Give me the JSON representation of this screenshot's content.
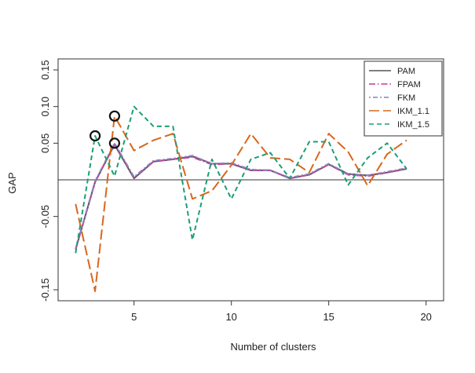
{
  "chart_data": {
    "type": "line",
    "title": "",
    "xlabel": "Number of clusters",
    "ylabel": "GAP",
    "xlim": [
      1.1,
      20.9
    ],
    "ylim": [
      -0.165,
      0.165
    ],
    "xticks": [
      5,
      10,
      15,
      20
    ],
    "yticks": [
      -0.15,
      -0.05,
      0.05,
      0.1,
      0.15
    ],
    "ytick_labels": [
      "-0.15",
      "-0.05",
      "0.05",
      "0.10",
      "0.15"
    ],
    "reference_line_y": 0,
    "legend_position": "top-right",
    "x": [
      2,
      3,
      4,
      5,
      6,
      7,
      8,
      9,
      10,
      11,
      12,
      13,
      14,
      15,
      16,
      17,
      18,
      19
    ],
    "series": [
      {
        "name": "PAM",
        "color": "#555555",
        "dash": "solid",
        "values": [
          -0.095,
          -0.003,
          0.048,
          0.002,
          0.025,
          0.028,
          0.032,
          0.022,
          0.022,
          0.013,
          0.013,
          0.002,
          0.007,
          0.021,
          0.008,
          0.006,
          0.01,
          0.015
        ]
      },
      {
        "name": "FPAM",
        "color": "#c43c98",
        "dash": "dashdot",
        "values": [
          -0.095,
          -0.003,
          0.049,
          0.003,
          0.025,
          0.028,
          0.031,
          0.021,
          0.022,
          0.013,
          0.013,
          0.002,
          0.007,
          0.021,
          0.007,
          0.005,
          0.01,
          0.015
        ]
      },
      {
        "name": "FKM",
        "color": "#8a7fc0",
        "dash": "dotdash",
        "values": [
          -0.094,
          -0.002,
          0.05,
          0.004,
          0.026,
          0.029,
          0.033,
          0.022,
          0.023,
          0.014,
          0.013,
          0.003,
          0.008,
          0.022,
          0.008,
          0.006,
          0.011,
          0.016
        ]
      },
      {
        "name": "IKM_1.1",
        "color": "#d9661c",
        "dash": "longdash",
        "values": [
          -0.033,
          -0.152,
          0.087,
          0.04,
          0.054,
          0.063,
          -0.026,
          -0.015,
          0.02,
          0.063,
          0.03,
          0.028,
          0.01,
          0.063,
          0.038,
          -0.008,
          0.035,
          0.054
        ]
      },
      {
        "name": "IKM_1.5",
        "color": "#1b9e77",
        "dash": "dashed",
        "values": [
          -0.1,
          0.06,
          0.005,
          0.1,
          0.073,
          0.073,
          -0.082,
          0.028,
          -0.026,
          0.028,
          0.037,
          0.002,
          0.052,
          0.052,
          -0.007,
          0.03,
          0.05,
          0.015
        ]
      }
    ],
    "markers": [
      {
        "x": 3,
        "y": 0.06
      },
      {
        "x": 4,
        "y": 0.087
      },
      {
        "x": 4,
        "y": 0.05
      }
    ]
  }
}
